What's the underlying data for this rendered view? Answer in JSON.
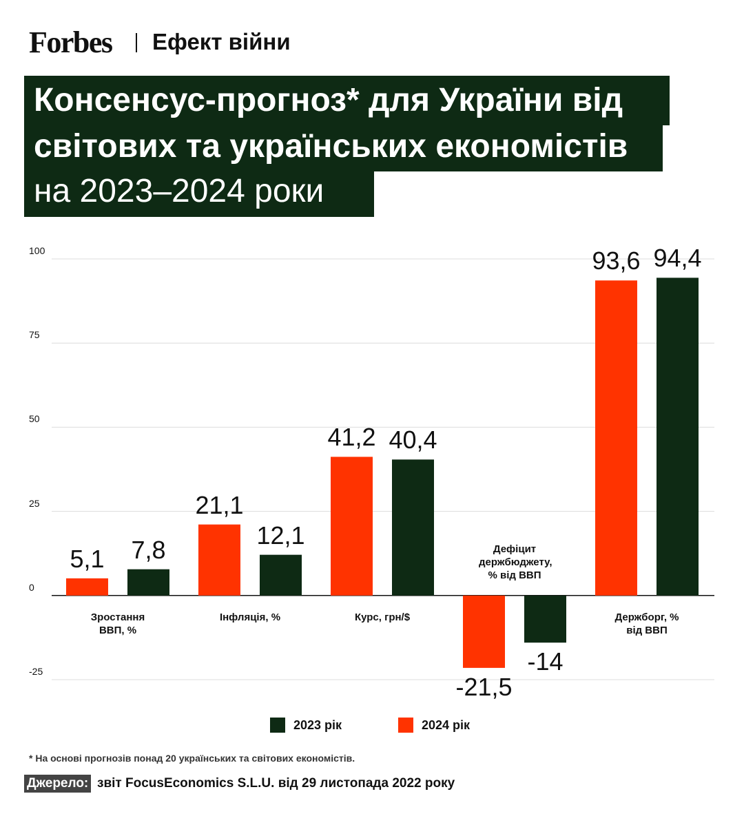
{
  "header": {
    "brand": "Forbes",
    "section": "Ефект війни"
  },
  "chart_data": {
    "type": "bar",
    "title": [
      "Консенсус-прогноз* для України від",
      "світових та українських економістів",
      "на 2023–2024 роки"
    ],
    "categories": [
      "Зростання ВВП, %",
      "Інфляція, %",
      "Курс, грн/$",
      "Дефіцит держбюджету, % від ВВП",
      "Держборг, % від ВВП"
    ],
    "series": [
      {
        "name": "2023 рік",
        "color": "#0e2a14",
        "values": [
          7.8,
          12.1,
          40.4,
          -14,
          94.4
        ],
        "value_labels": [
          "7,8",
          "12,1",
          "40,4",
          "-14",
          "94,4"
        ]
      },
      {
        "name": "2024 рік",
        "color": "#ff3300",
        "values": [
          5.1,
          21.1,
          41.2,
          -21.5,
          93.6
        ],
        "value_labels": [
          "5,1",
          "21,1",
          "41,2",
          "-21,5",
          "93,6"
        ]
      }
    ],
    "ylim": [
      -25,
      100
    ],
    "yticks": [
      -25,
      0,
      25,
      50,
      75,
      100
    ],
    "grid": true
  },
  "footer": {
    "note": "* На основі прогнозів понад 20 українських та світових економістів.",
    "source_label": "Джерело:",
    "source": "звіт FocusEconomics S.L.U. від 29 листопада 2022 року"
  }
}
